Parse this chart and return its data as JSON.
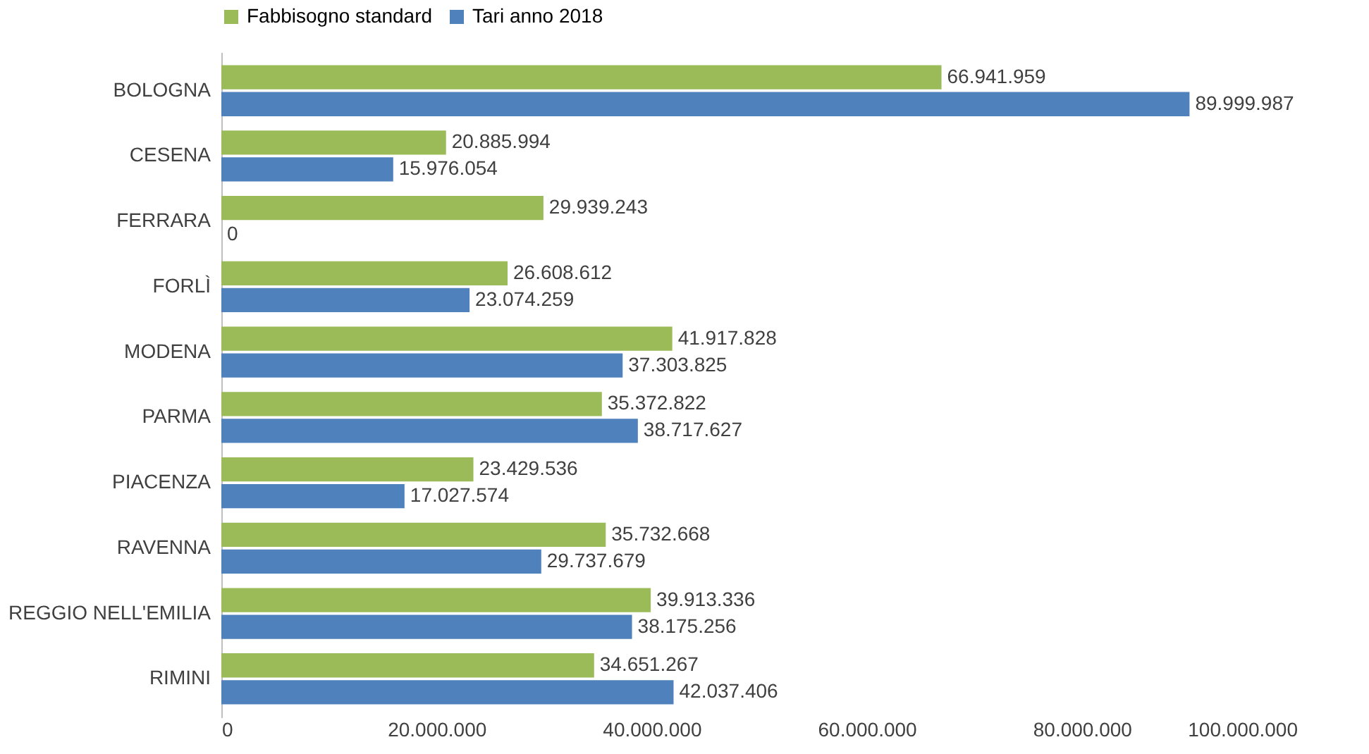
{
  "chart_data": {
    "type": "bar",
    "orientation": "horizontal",
    "categories": [
      "BOLOGNA",
      "CESENA",
      "FERRARA",
      "FORLÌ",
      "MODENA",
      "PARMA",
      "PIACENZA",
      "RAVENNA",
      "REGGIO NELL'EMILIA",
      "RIMINI"
    ],
    "series": [
      {
        "name": "Fabbisogno standard",
        "color": "#9bbb59",
        "values": [
          66941959,
          20885994,
          29939243,
          26608612,
          41917828,
          35372822,
          23429536,
          35732668,
          39913336,
          34651267
        ],
        "value_labels": [
          "66.941.959",
          "20.885.994",
          "29.939.243",
          "26.608.612",
          "41.917.828",
          "35.372.822",
          "23.429.536",
          "35.732.668",
          "39.913.336",
          "34.651.267"
        ]
      },
      {
        "name": "Tari anno 2018",
        "color": "#4f81bd",
        "values": [
          89999987,
          15976054,
          0,
          23074259,
          37303825,
          38717627,
          17027574,
          29737679,
          38175256,
          42037406
        ],
        "value_labels": [
          "89.999.987",
          "15.976.054",
          "0",
          "23.074.259",
          "37.303.825",
          "38.717.627",
          "17.027.574",
          "29.737.679",
          "38.175.256",
          "42.037.406"
        ]
      }
    ],
    "xlim": [
      0,
      100000000
    ],
    "xticks": [
      0,
      {
        "value": 20000000,
        "label": "20.000.000"
      },
      {
        "value": 40000000,
        "label": "40.000.000"
      },
      {
        "value": 60000000,
        "label": "60.000.000"
      },
      {
        "value": 80000000,
        "label": "80.000.000"
      },
      {
        "value": 100000000,
        "label": "100.000.000"
      }
    ],
    "legend": "top",
    "grid": false
  }
}
